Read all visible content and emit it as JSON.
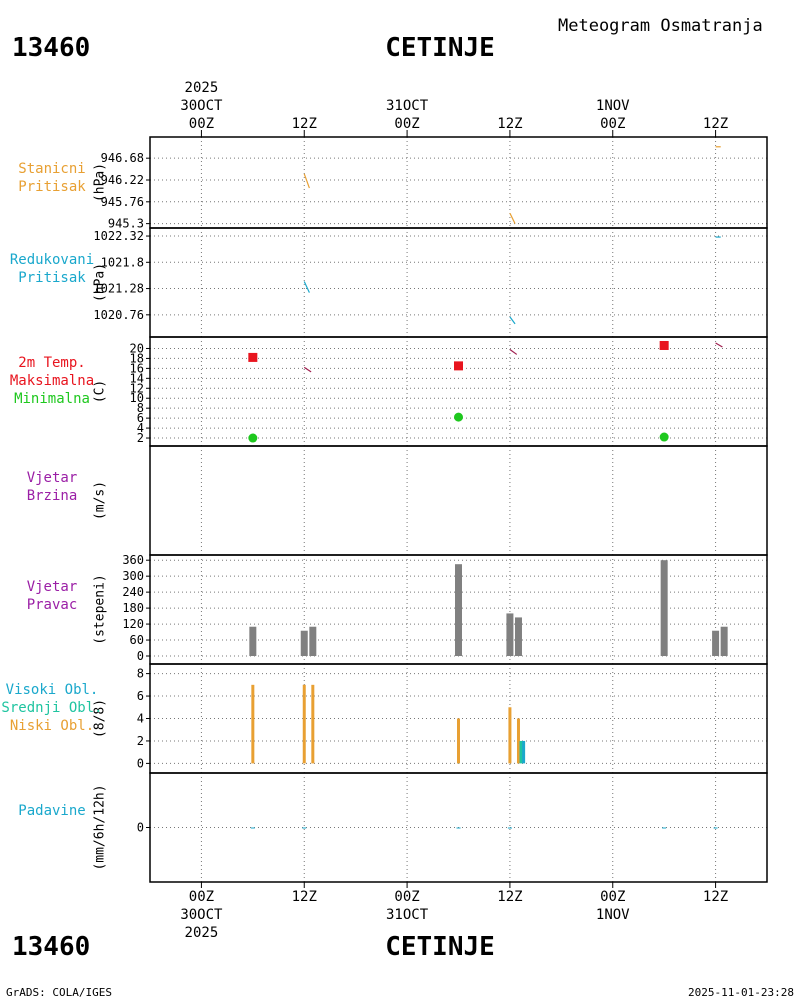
{
  "header": {
    "station_id": "13460",
    "station_name": "CETINJE",
    "meteogram_title": "Meteogram Osmatranja"
  },
  "footer": {
    "station_id": "13460",
    "station_name": "CETINJE",
    "grads_credit": "GrADS: COLA/IGES",
    "timestamp": "2025-11-01-23:28"
  },
  "colors": {
    "orange": "#e8a033",
    "cyan": "#1aa8cc",
    "teal": "#1fc4a0",
    "red": "#e8141e",
    "green": "#1ec81e",
    "purple": "#9b1fa6",
    "gray": "#808080",
    "maroon": "#a02050"
  },
  "chart_data": {
    "type": "meteogram",
    "time_axis": {
      "range_hours": [
        -6,
        66
      ],
      "ticks": [
        {
          "hour": 0,
          "label": "00Z",
          "date": "30OCT",
          "year": "2025"
        },
        {
          "hour": 12,
          "label": "12Z"
        },
        {
          "hour": 24,
          "label": "00Z",
          "date": "31OCT"
        },
        {
          "hour": 36,
          "label": "12Z"
        },
        {
          "hour": 48,
          "label": "00Z",
          "date": "1NOV"
        },
        {
          "hour": 60,
          "label": "12Z"
        }
      ]
    },
    "panels": [
      {
        "id": "station_pressure",
        "title_lines": [
          {
            "text": "Stanicni",
            "color": "#e8a033"
          },
          {
            "text": "Pritisak",
            "color": "#e8a033"
          }
        ],
        "ylabel": "(hPa)",
        "ylim": [
          945.25,
          947.0
        ],
        "yticks": [
          945.3,
          945.76,
          946.22,
          946.68
        ],
        "ytick_labels": [
          "945.3",
          "945.76",
          "946.22",
          "946.68"
        ],
        "series": [
          {
            "name": "Stanicni Pritisak",
            "color": "#e8a033",
            "segments": [
              [
                {
                  "x": 12,
                  "y": 946.35
                },
                {
                  "x": 12.6,
                  "y": 946.05
                }
              ],
              [
                {
                  "x": 36,
                  "y": 945.52
                },
                {
                  "x": 36.6,
                  "y": 945.3
                }
              ],
              [
                {
                  "x": 60,
                  "y": 946.92
                },
                {
                  "x": 60.6,
                  "y": 946.92
                }
              ]
            ]
          }
        ]
      },
      {
        "id": "sea_level_pressure",
        "title_lines": [
          {
            "text": "Redukovani",
            "color": "#1aa8cc"
          },
          {
            "text": "Pritisak",
            "color": "#1aa8cc"
          }
        ],
        "ylabel": "(hPa)",
        "ylim": [
          1020.4,
          1022.4
        ],
        "yticks": [
          1020.76,
          1021.28,
          1021.8,
          1022.32
        ],
        "ytick_labels": [
          "1020.76",
          "1021.28",
          "1021.8",
          "1022.32"
        ],
        "series": [
          {
            "name": "Redukovani Pritisak",
            "color": "#1aa8cc",
            "segments": [
              [
                {
                  "x": 12,
                  "y": 1021.42
                },
                {
                  "x": 12.6,
                  "y": 1021.2
                }
              ],
              [
                {
                  "x": 36,
                  "y": 1020.72
                },
                {
                  "x": 36.6,
                  "y": 1020.58
                }
              ],
              [
                {
                  "x": 60,
                  "y": 1022.3
                },
                {
                  "x": 60.6,
                  "y": 1022.3
                }
              ]
            ]
          }
        ]
      },
      {
        "id": "temperature",
        "title_lines": [
          {
            "text": "2m Temp.",
            "color": "#e8141e"
          },
          {
            "text": "Maksimalna",
            "color": "#e8141e"
          },
          {
            "text": "Minimalna",
            "color": "#1ec81e"
          }
        ],
        "ylabel": "(C)",
        "ylim": [
          0.8,
          21.5
        ],
        "yticks": [
          2,
          4,
          6,
          8,
          10,
          12,
          14,
          16,
          18,
          20
        ],
        "ytick_labels": [
          "2",
          "4",
          "6",
          "8",
          "10",
          "12",
          "14",
          "16",
          "18",
          "20"
        ],
        "series": [
          {
            "name": "2m Temp.",
            "color": "#a02050",
            "segments": [
              [
                {
                  "x": 12,
                  "y": 16.2
                },
                {
                  "x": 12.8,
                  "y": 15.3
                }
              ],
              [
                {
                  "x": 36,
                  "y": 19.8
                },
                {
                  "x": 36.8,
                  "y": 18.8
                }
              ],
              [
                {
                  "x": 60,
                  "y": 21.1
                },
                {
                  "x": 60.8,
                  "y": 20.3
                }
              ]
            ]
          }
        ],
        "markers": [
          {
            "name": "Maksimalna",
            "shape": "square",
            "color": "#e8141e",
            "points": [
              {
                "x": 6,
                "y": 18.2
              },
              {
                "x": 30,
                "y": 16.5
              },
              {
                "x": 54,
                "y": 20.6
              }
            ]
          },
          {
            "name": "Minimalna",
            "shape": "circle",
            "color": "#1ec81e",
            "points": [
              {
                "x": 6,
                "y": 2.0
              },
              {
                "x": 30,
                "y": 6.2
              },
              {
                "x": 54,
                "y": 2.2
              }
            ]
          }
        ]
      },
      {
        "id": "wind_speed",
        "title_lines": [
          {
            "text": "Vjetar",
            "color": "#9b1fa6"
          },
          {
            "text": "Brzina",
            "color": "#9b1fa6"
          }
        ],
        "ylabel": "(m/s)",
        "ylim": [
          0,
          1
        ],
        "yticks": [],
        "ytick_labels": [],
        "series": []
      },
      {
        "id": "wind_direction",
        "title_lines": [
          {
            "text": "Vjetar",
            "color": "#9b1fa6"
          },
          {
            "text": "Pravac",
            "color": "#9b1fa6"
          }
        ],
        "ylabel": "(stepeni)",
        "ylim": [
          -15,
          372
        ],
        "yticks": [
          0,
          60,
          120,
          180,
          240,
          300,
          360
        ],
        "ytick_labels": [
          "0",
          "60",
          "120",
          "180",
          "240",
          "300",
          "360"
        ],
        "bars": [
          {
            "x": 6,
            "value": 110,
            "color": "#808080"
          },
          {
            "x": 12,
            "value": 95,
            "color": "#808080"
          },
          {
            "x": 13,
            "value": 110,
            "color": "#808080"
          },
          {
            "x": 30,
            "value": 345,
            "color": "#808080"
          },
          {
            "x": 36,
            "value": 160,
            "color": "#808080"
          },
          {
            "x": 37,
            "value": 145,
            "color": "#808080"
          },
          {
            "x": 54,
            "value": 360,
            "color": "#808080"
          },
          {
            "x": 60,
            "value": 95,
            "color": "#808080"
          },
          {
            "x": 61,
            "value": 110,
            "color": "#808080"
          }
        ]
      },
      {
        "id": "clouds",
        "title_lines": [
          {
            "text": "Visoki Obl.",
            "color": "#1aa8cc"
          },
          {
            "text": "Srednji Obl.",
            "color": "#1fc4a0"
          },
          {
            "text": "Niski Obl.",
            "color": "#e8a033"
          }
        ],
        "ylabel": "(8/8)",
        "ylim": [
          -0.5,
          8.5
        ],
        "yticks": [
          0,
          2,
          4,
          6,
          8
        ],
        "ytick_labels": [
          "0",
          "2",
          "4",
          "6",
          "8"
        ],
        "bars": [
          {
            "x": 6,
            "value": 7,
            "color": "#e8a033"
          },
          {
            "x": 12,
            "value": 7,
            "color": "#e8a033"
          },
          {
            "x": 13,
            "value": 7,
            "color": "#e8a033"
          },
          {
            "x": 30,
            "value": 2,
            "color": "#1aa8cc"
          },
          {
            "x": 30,
            "value": 4,
            "color": "#e8a033"
          },
          {
            "x": 36,
            "value": 5,
            "color": "#e8a033"
          },
          {
            "x": 37,
            "value": 4,
            "color": "#e8a033"
          },
          {
            "x": 37.3,
            "value": 2,
            "color": "#1fc4a0"
          },
          {
            "x": 37.6,
            "value": 2,
            "color": "#1aa8cc"
          }
        ]
      },
      {
        "id": "precipitation",
        "title_lines": [
          {
            "text": "Padavine",
            "color": "#1aa8cc"
          }
        ],
        "ylabel": "(mm/6h/12h)",
        "ylim": [
          -1,
          1
        ],
        "yticks": [
          0
        ],
        "ytick_labels": [
          "0"
        ],
        "bars": [
          {
            "x": 6,
            "value": 0,
            "color": "#1aa8cc"
          },
          {
            "x": 12,
            "value": 0,
            "color": "#1aa8cc"
          },
          {
            "x": 30,
            "value": 0,
            "color": "#1aa8cc"
          },
          {
            "x": 36,
            "value": 0,
            "color": "#1aa8cc"
          },
          {
            "x": 54,
            "value": 0,
            "color": "#1aa8cc"
          },
          {
            "x": 60,
            "value": 0,
            "color": "#1aa8cc"
          }
        ]
      }
    ]
  }
}
